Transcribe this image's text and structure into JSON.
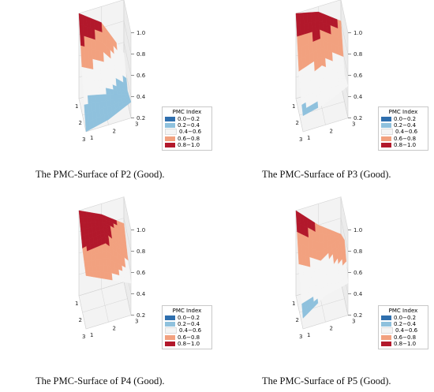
{
  "colors": {
    "bins": [
      "#2f6fae",
      "#8fc1dd",
      "#f5f5f5",
      "#f2a17f",
      "#b2182b"
    ],
    "grid": "#d4d4d4",
    "pane": "#f3f3f3",
    "pane_side": "#ebebeb"
  },
  "legend": {
    "title": "PMC Index",
    "items": [
      "0.0−0.2",
      "0.2−0.4",
      "0.4−0.6",
      "0.6−0.8",
      "0.8−1.0"
    ]
  },
  "chart_data": [
    {
      "type": "surface3d",
      "caption": "The PMC-Surface of P2 (Good).",
      "x_ticks": [
        "1",
        "2",
        "3"
      ],
      "y_ticks": [
        "1",
        "2",
        "3"
      ],
      "z_ticks": [
        "0.2",
        "0.4",
        "0.6",
        "0.8",
        "1.0"
      ],
      "zlim": [
        0.2,
        1.0
      ],
      "z": [
        [
          1.0,
          0.85,
          0.5
        ],
        [
          0.55,
          0.45,
          0.3
        ],
        [
          0.2,
          0.25,
          0.35
        ]
      ]
    },
    {
      "type": "surface3d",
      "caption": "The PMC-Surface of P3 (Good).",
      "x_ticks": [
        "1",
        "2",
        "3"
      ],
      "y_ticks": [
        "1",
        "2",
        "3"
      ],
      "z_ticks": [
        "0.2",
        "0.4",
        "0.6",
        "0.8",
        "1.0"
      ],
      "zlim": [
        0.2,
        1.0
      ],
      "z": [
        [
          1.0,
          0.95,
          0.8
        ],
        [
          0.5,
          0.6,
          0.45
        ],
        [
          0.35,
          0.4,
          0.5
        ]
      ]
    },
    {
      "type": "surface3d",
      "caption": "The PMC-Surface of P4 (Good).",
      "x_ticks": [
        "1",
        "2",
        "3"
      ],
      "y_ticks": [
        "1",
        "2",
        "3"
      ],
      "z_ticks": [
        "0.2",
        "0.4",
        "0.6",
        "0.8",
        "1.0"
      ],
      "zlim": [
        0.2,
        1.0
      ],
      "z": [
        [
          1.0,
          0.9,
          0.75
        ],
        [
          0.8,
          0.85,
          0.6
        ],
        [
          0.7,
          0.6,
          0.5
        ]
      ]
    },
    {
      "type": "surface3d",
      "caption": "The PMC-Surface of P5 (Good).",
      "x_ticks": [
        "1",
        "2",
        "3"
      ],
      "y_ticks": [
        "1",
        "2",
        "3"
      ],
      "z_ticks": [
        "0.2",
        "0.4",
        "0.6",
        "0.8",
        "1.0"
      ],
      "zlim": [
        0.2,
        1.0
      ],
      "z": [
        [
          1.0,
          0.8,
          0.65
        ],
        [
          0.55,
          0.45,
          0.75
        ],
        [
          0.3,
          0.45,
          0.5
        ]
      ]
    }
  ]
}
